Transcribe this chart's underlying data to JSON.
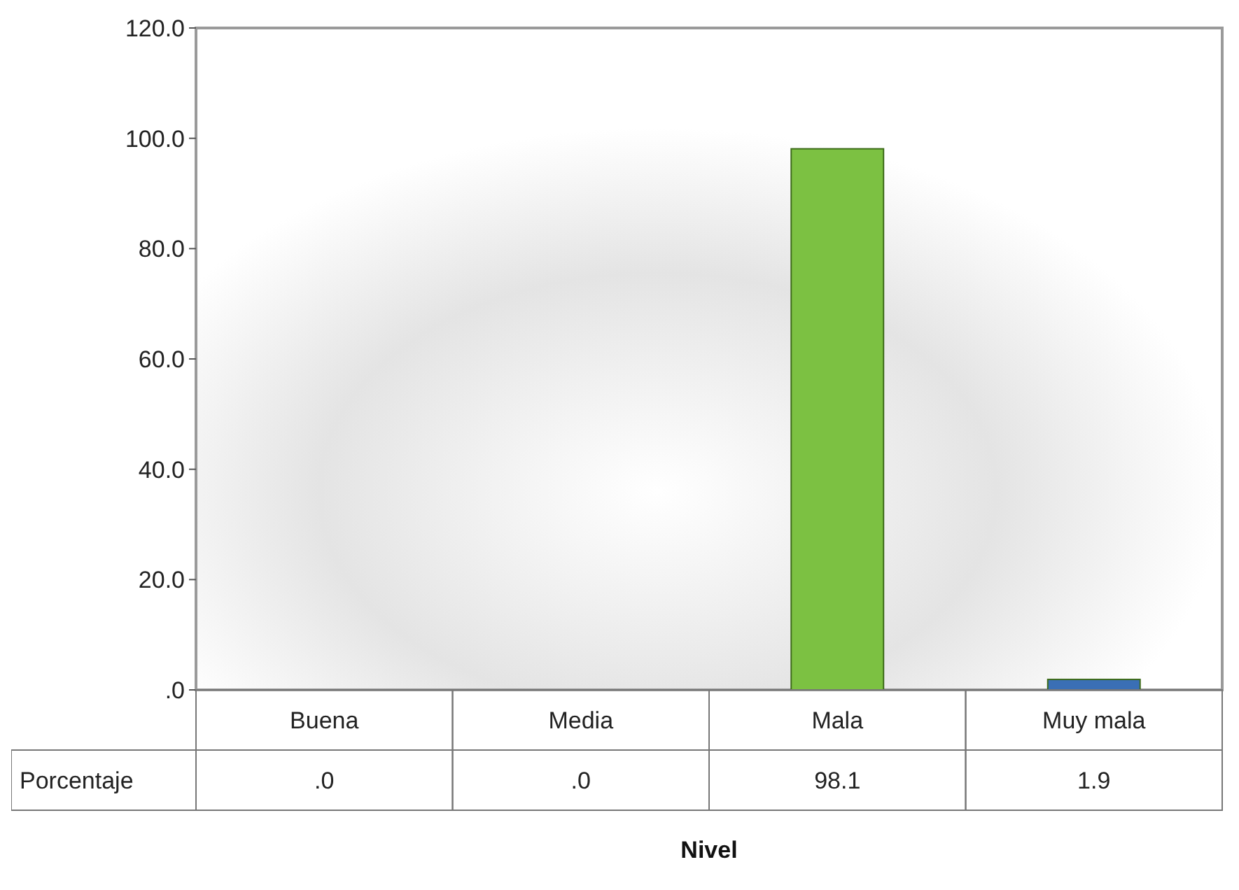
{
  "chart_data": {
    "type": "bar",
    "xlabel": "Nivel",
    "categories": [
      "Buena",
      "Media",
      "Mala",
      "Muy mala"
    ],
    "series": [
      {
        "name": "Porcentaje",
        "colors": [
          null,
          null,
          "#7cc142",
          "#3a6fb5"
        ],
        "values": [
          0,
          0,
          98.1,
          1.9
        ],
        "value_labels": [
          ".0",
          ".0",
          "98.1",
          "1.9"
        ]
      }
    ],
    "ylim": [
      0,
      120
    ],
    "yticks": [
      {
        "value": 0,
        "label": ".0"
      },
      {
        "value": 20,
        "label": "20.0"
      },
      {
        "value": 40,
        "label": "40.0"
      },
      {
        "value": 60,
        "label": "60.0"
      },
      {
        "value": 80,
        "label": "80.0"
      },
      {
        "value": 100,
        "label": "100.0"
      },
      {
        "value": 120,
        "label": "120.0"
      }
    ],
    "grid": false
  }
}
